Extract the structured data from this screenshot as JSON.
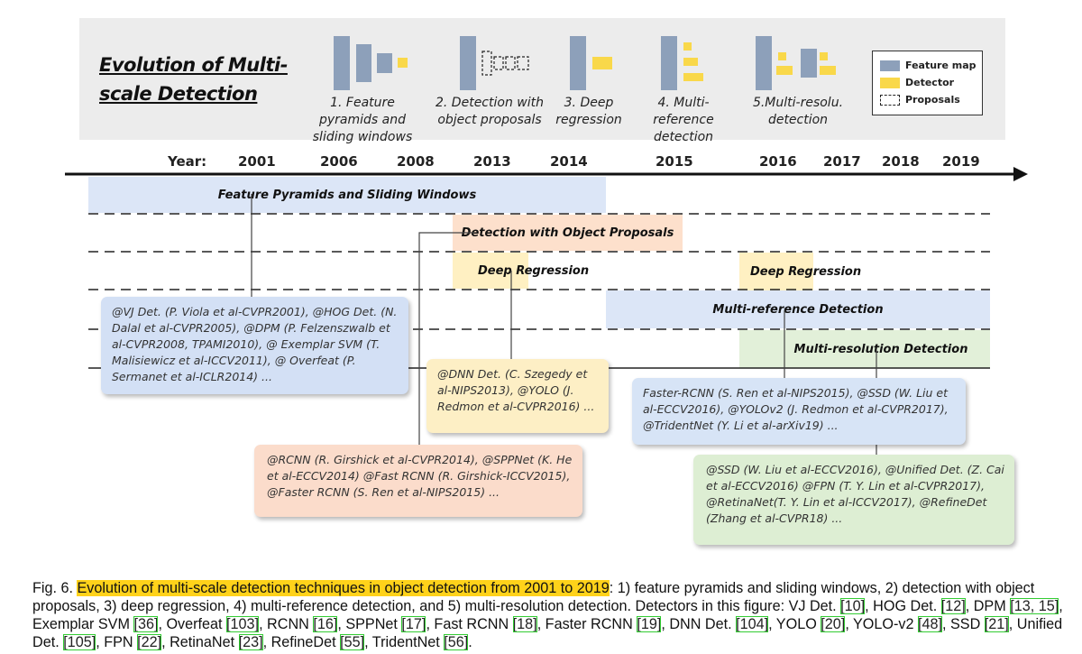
{
  "header": {
    "title": "Evolution of Multi-scale Detection",
    "stages": [
      {
        "label": "1. Feature pyramids and sliding windows"
      },
      {
        "label": "2. Detection with object proposals"
      },
      {
        "label": "3. Deep regression"
      },
      {
        "label": "4. Multi-reference detection"
      },
      {
        "label": "5.Multi-resolu. detection"
      }
    ],
    "legend": [
      {
        "label": "Feature map",
        "color": "#8da0ba"
      },
      {
        "label": "Detector",
        "color": "#f9d84a"
      },
      {
        "label": "Proposals",
        "color": "dashed"
      }
    ]
  },
  "timeline": {
    "year_label": "Year:",
    "years": [
      "2001",
      "2006",
      "2008",
      "2013",
      "2014",
      "2015",
      "2016",
      "2017",
      "2018",
      "2019"
    ]
  },
  "bands": [
    {
      "label": "Feature Pyramids and Sliding Windows",
      "color": "#dce6f7"
    },
    {
      "label": "Detection with Object Proposals",
      "color": "#fde0cc"
    },
    {
      "label": "Deep Regression",
      "color": "#fff0c2"
    },
    {
      "label": "Deep Regression",
      "color": "#fff0c2"
    },
    {
      "label": "Multi-reference Detection",
      "color": "#dce6f7"
    },
    {
      "label": "Multi-resolution Detection",
      "color": "#e2f0d9"
    }
  ],
  "cards": [
    {
      "text": "@VJ Det. (P. Viola et al-CVPR2001), @HOG Det. (N. Dalal et al-CVPR2005), @DPM (P. Felzenszwalb et al-CVPR2008, TPAMI2010), @ Exemplar SVM (T. Malisiewicz et al-ICCV2011), @ Overfeat (P. Sermanet et al-ICLR2014) ...",
      "color": "#d3e0f5"
    },
    {
      "text": "@DNN Det. (C. Szegedy et al-NIPS2013), @YOLO (J. Redmon et al-CVPR2016) ...",
      "color": "#fdefc5"
    },
    {
      "text": "@RCNN (R. Girshick et al-CVPR2014), @SPPNet (K. He et al-ECCV2014) @Fast RCNN (R. Girshick-ICCV2015), @Faster RCNN (S. Ren et al-NIPS2015) ...",
      "color": "#fbdccb"
    },
    {
      "text": "Faster-RCNN (S. Ren et al-NIPS2015), @SSD (W. Liu et al-ECCV2016), @YOLOv2 (J. Redmon et al-CVPR2017), @TridentNet (Y. Li et al-arXiv19) ...",
      "color": "#d7e4f6"
    },
    {
      "text": "@SSD (W. Liu et al-ECCV2016), @Unified Det. (Z. Cai et al-ECCV2016) @FPN (T. Y. Lin et al-CVPR2017), @RetinaNet(T. Y. Lin et al-ICCV2017), @RefineDet (Zhang et al-CVPR18) ...",
      "color": "#ddeed3"
    }
  ],
  "caption": {
    "prefix": "Fig. 6. ",
    "highlight": "Evolution of multi-scale detection techniques in object detection from 2001 to 2019",
    "p1": ": 1) feature pyramids and sliding windows, 2) detection with object proposals, 3) deep regression, 4) multi-reference detection, and 5) multi-resolution detection. Detectors in this figure: VJ Det. ",
    "r1": "[10]",
    "p2": ", HOG Det. ",
    "r2": "[12]",
    "p3": ", DPM ",
    "r3": "[13, 15]",
    "p4": ", Exemplar SVM ",
    "r4": "[36]",
    "p5": ", Overfeat ",
    "r5": "[103]",
    "p6": ", RCNN ",
    "r6": "[16]",
    "p7": ", SPPNet ",
    "r7": "[17]",
    "p8": ", Fast RCNN ",
    "r8": "[18]",
    "p9": ", Faster RCNN ",
    "r9": "[19]",
    "p10": ", DNN Det. ",
    "r10": "[104]",
    "p11": ", YOLO ",
    "r11": "[20]",
    "p12": ", YOLO-v2 ",
    "r12": "[48]",
    "p13": ", SSD ",
    "r13": "[21]",
    "p14": ", Unified Det. ",
    "r14": "[105]",
    "p15": ", FPN ",
    "r15": "[22]",
    "p16": ", RetinaNet ",
    "r16": "[23]",
    "p17": ", RefineDet ",
    "r17": "[55]",
    "p18": ", TridentNet ",
    "r18": "[56]",
    "p19": ".",
    "ref_box_color": "#33cc33"
  }
}
